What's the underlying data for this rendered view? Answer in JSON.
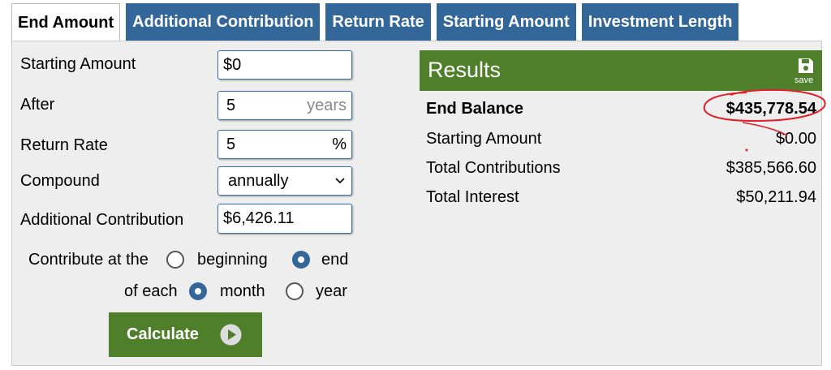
{
  "tabs": [
    "End Amount",
    "Additional Contribution",
    "Return Rate",
    "Starting Amount",
    "Investment Length"
  ],
  "active_tab": 0,
  "form": {
    "fields": [
      {
        "label": "Starting Amount",
        "value": "$0"
      },
      {
        "label": "After",
        "value": "5",
        "unit": "years"
      },
      {
        "label": "Return Rate",
        "value": "5",
        "unit": "%"
      },
      {
        "label": "Compound",
        "value": "annually"
      },
      {
        "label": "Additional Contribution",
        "value": "$6,426.11"
      }
    ],
    "contribute_at": {
      "label": "Contribute at the",
      "options": [
        "beginning",
        "end"
      ],
      "selected": 1
    },
    "frequency": {
      "label": "of each",
      "options": [
        "month",
        "year"
      ],
      "selected": 0
    },
    "button": "Calculate"
  },
  "results": {
    "title": "Results",
    "save": "save",
    "rows": [
      {
        "label": "End Balance",
        "value": "$435,778.54"
      },
      {
        "label": "Starting Amount",
        "value": "$0.00"
      },
      {
        "label": "Total Contributions",
        "value": "$385,566.60"
      },
      {
        "label": "Total Interest",
        "value": "$50,211.94"
      }
    ]
  }
}
